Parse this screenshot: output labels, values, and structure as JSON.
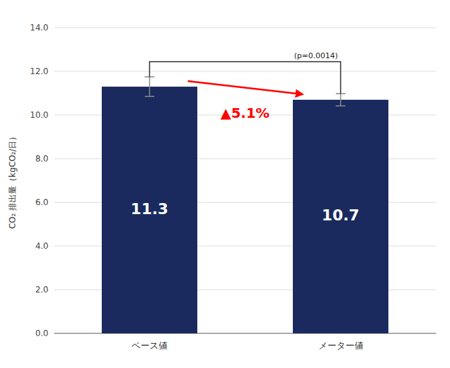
{
  "chart_data": {
    "type": "bar",
    "categories": [
      "ベース値",
      "メーター値"
    ],
    "values": [
      11.3,
      10.7
    ],
    "errors": [
      0.45,
      0.28
    ],
    "color": "#1a2a5e",
    "data_labels": true,
    "ylabel": "CO₂ 排出量（kgCO₂/日）",
    "ylim": [
      0,
      14.0
    ],
    "yticks": [
      {
        "value": 0.0,
        "label": "0.0"
      },
      {
        "value": 2.0,
        "label": "2.0"
      },
      {
        "value": 4.0,
        "label": "4.0"
      },
      {
        "value": 6.0,
        "label": "6.0"
      },
      {
        "value": 8.0,
        "label": "8.0"
      },
      {
        "value": 10.0,
        "label": "10.0"
      },
      {
        "value": 12.0,
        "label": "12.0"
      },
      {
        "value": 14.0,
        "label": "14.0"
      }
    ],
    "grid": true,
    "annotations": [
      {
        "text": "(p=0.0014)"
      },
      {
        "text": "▲5.1%",
        "color": "#ff0000"
      }
    ]
  }
}
